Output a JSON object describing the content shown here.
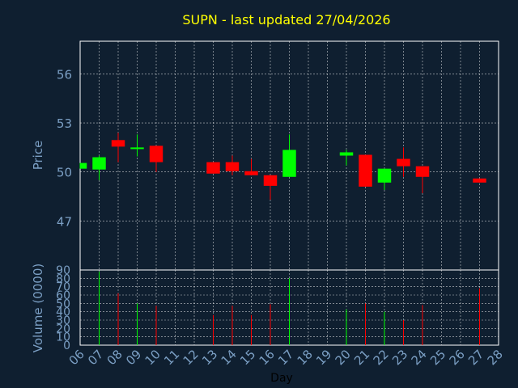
{
  "chart_data": [
    {
      "type": "candlestick",
      "title": "SUPN - last updated 27/04/2026",
      "ylabel": "Price",
      "ylim": [
        44,
        58
      ],
      "yticks": [
        47,
        50,
        53,
        56
      ],
      "x_range": [
        6,
        28
      ],
      "grid": true,
      "colors": {
        "up": "#00ff00",
        "down": "#ff0000"
      },
      "candles": [
        {
          "day": 6,
          "open": 50.2,
          "high": 50.55,
          "low": 50.2,
          "close": 50.55
        },
        {
          "day": 7,
          "open": 50.15,
          "high": 51.0,
          "low": 49.5,
          "close": 50.9
        },
        {
          "day": 8,
          "open": 51.95,
          "high": 52.4,
          "low": 50.6,
          "close": 51.55
        },
        {
          "day": 9,
          "open": 51.4,
          "high": 52.3,
          "low": 50.95,
          "close": 51.5
        },
        {
          "day": 10,
          "open": 51.6,
          "high": 51.6,
          "low": 50.0,
          "close": 50.6
        },
        {
          "day": 13,
          "open": 50.6,
          "high": 50.6,
          "low": 49.9,
          "close": 49.9
        },
        {
          "day": 14,
          "open": 50.6,
          "high": 51.0,
          "low": 49.8,
          "close": 50.05
        },
        {
          "day": 15,
          "open": 50.05,
          "high": 50.8,
          "low": 49.8,
          "close": 49.8
        },
        {
          "day": 16,
          "open": 49.8,
          "high": 49.8,
          "low": 48.3,
          "close": 49.15
        },
        {
          "day": 17,
          "open": 49.7,
          "high": 52.3,
          "low": 49.7,
          "close": 51.35
        },
        {
          "day": 20,
          "open": 51.0,
          "high": 51.35,
          "low": 50.4,
          "close": 51.2
        },
        {
          "day": 21,
          "open": 51.05,
          "high": 51.05,
          "low": 49.1,
          "close": 49.1
        },
        {
          "day": 22,
          "open": 49.35,
          "high": 50.2,
          "low": 48.9,
          "close": 50.2
        },
        {
          "day": 23,
          "open": 50.8,
          "high": 51.5,
          "low": 49.7,
          "close": 50.35
        },
        {
          "day": 24,
          "open": 50.35,
          "high": 50.35,
          "low": 48.7,
          "close": 49.7
        },
        {
          "day": 27,
          "open": 49.6,
          "high": 49.6,
          "low": 49.35,
          "close": 49.35
        }
      ]
    },
    {
      "type": "bar",
      "ylabel": "Volume (0000)",
      "xlabel": "Day",
      "ylim": [
        0,
        90
      ],
      "yticks": [
        0,
        10,
        20,
        30,
        40,
        50,
        60,
        70,
        80,
        90
      ],
      "x_range": [
        6,
        28
      ],
      "xticks": [
        "06",
        "07",
        "08",
        "09",
        "10",
        "11",
        "12",
        "13",
        "14",
        "15",
        "16",
        "17",
        "18",
        "19",
        "20",
        "21",
        "22",
        "23",
        "24",
        "25",
        "26",
        "27",
        "28"
      ],
      "grid": true,
      "bars": [
        {
          "day": 7,
          "value": 88,
          "direction": "up"
        },
        {
          "day": 8,
          "value": 62,
          "direction": "down"
        },
        {
          "day": 9,
          "value": 50,
          "direction": "up"
        },
        {
          "day": 10,
          "value": 47,
          "direction": "down"
        },
        {
          "day": 13,
          "value": 36,
          "direction": "down"
        },
        {
          "day": 14,
          "value": 47,
          "direction": "down"
        },
        {
          "day": 15,
          "value": 36,
          "direction": "down"
        },
        {
          "day": 16,
          "value": 49,
          "direction": "down"
        },
        {
          "day": 17,
          "value": 80,
          "direction": "up"
        },
        {
          "day": 20,
          "value": 43,
          "direction": "up"
        },
        {
          "day": 21,
          "value": 50,
          "direction": "down"
        },
        {
          "day": 22,
          "value": 40,
          "direction": "up"
        },
        {
          "day": 23,
          "value": 30,
          "direction": "down"
        },
        {
          "day": 24,
          "value": 48,
          "direction": "down"
        },
        {
          "day": 27,
          "value": 68,
          "direction": "down"
        }
      ]
    }
  ]
}
